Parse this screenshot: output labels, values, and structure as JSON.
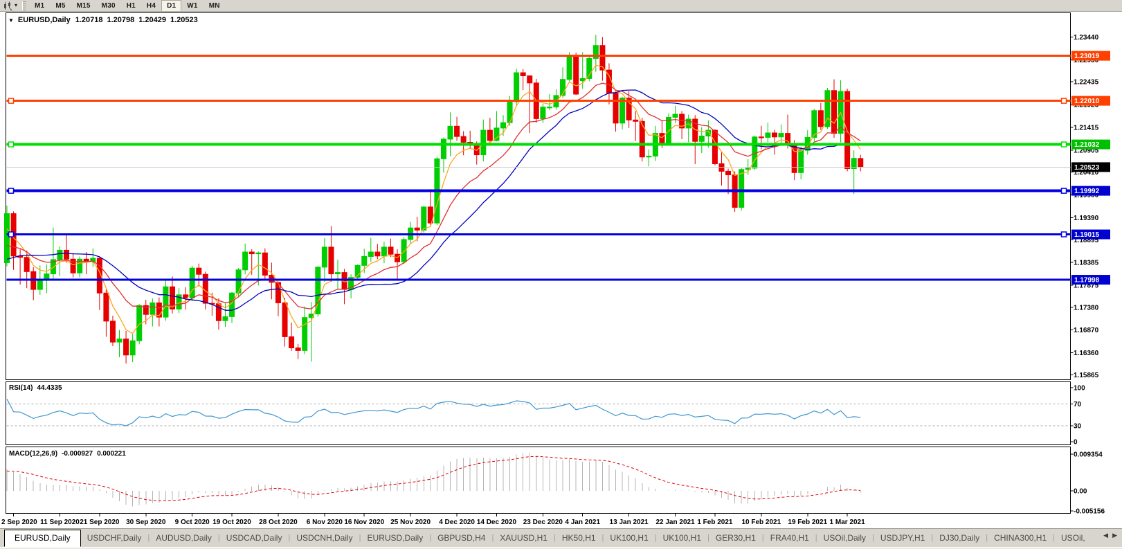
{
  "toolbar": {
    "chart_icon": "indicator-icon",
    "timeframes": [
      {
        "label": "M1",
        "active": false
      },
      {
        "label": "M5",
        "active": false
      },
      {
        "label": "M15",
        "active": false
      },
      {
        "label": "M30",
        "active": false
      },
      {
        "label": "H1",
        "active": false
      },
      {
        "label": "H4",
        "active": false
      },
      {
        "label": "D1",
        "active": true
      },
      {
        "label": "W1",
        "active": false
      },
      {
        "label": "MN",
        "active": false
      }
    ]
  },
  "chart_header": {
    "symbol": "EURUSD,Daily",
    "open": "1.20718",
    "high": "1.20798",
    "low": "1.20429",
    "close": "1.20523"
  },
  "price_axis": {
    "labels": [
      "1.23440",
      "1.22930",
      "1.22435",
      "1.21925",
      "1.21415",
      "1.20905",
      "1.20410",
      "1.19900",
      "1.19390",
      "1.18895",
      "1.18385",
      "1.17875",
      "1.17380",
      "1.16870",
      "1.16360",
      "1.15865"
    ],
    "current_price_badge": {
      "text": "1.20523",
      "bg": "#000000",
      "line_color": "#c8c8c8"
    }
  },
  "objects": {
    "hlines": [
      {
        "price": 1.23019,
        "label": "1.23019",
        "color": "#ff4000",
        "badge_bg": "#ff4000",
        "width": 3,
        "marker": false
      },
      {
        "price": 1.2201,
        "label": "1.22010",
        "color": "#ff4000",
        "badge_bg": "#ff4000",
        "width": 3,
        "marker": true
      },
      {
        "price": 1.21032,
        "label": "1.21032",
        "color": "#00de00",
        "badge_bg": "#00c000",
        "width": 4,
        "marker": true
      },
      {
        "price": 1.19992,
        "label": "1.19992",
        "color": "#0000e6",
        "badge_bg": "#0000d0",
        "width": 4,
        "marker": true
      },
      {
        "price": 1.19015,
        "label": "1.19015",
        "color": "#0000e6",
        "badge_bg": "#0000d0",
        "width": 3,
        "marker": true
      },
      {
        "price": 1.17998,
        "label": "1.17998",
        "color": "#0000e6",
        "badge_bg": "#0000d0",
        "width": 3,
        "marker": false
      }
    ]
  },
  "indicators": {
    "rsi": {
      "label": "RSI(14)",
      "value": "44.4335",
      "period": 14,
      "axis_labels": [
        "100",
        "70",
        "30",
        "0"
      ],
      "levels": [
        70,
        30
      ],
      "line_color": "#3e95d0",
      "level_color": "#a8a8a8"
    },
    "macd": {
      "label": "MACD(12,26,9)",
      "value_main": "-0.000927",
      "value_signal": "0.000221",
      "params": [
        12,
        26,
        9
      ],
      "axis_labels": [
        "0.009354",
        "0.00",
        "-0.005156"
      ],
      "axis_max": 0.009354,
      "axis_min": -0.005156,
      "histogram_color": "#b4b4b4",
      "signal_color": "#e00000"
    }
  },
  "chart_data": {
    "type": "candlestick",
    "title": "EURUSD,Daily",
    "symbol": "EURUSD",
    "timeframe": "Daily",
    "ylim": [
      1.15756,
      1.23983
    ],
    "grid": false,
    "up_color": "#00ce00",
    "down_color": "#e60000",
    "moving_averages": [
      {
        "period": 5,
        "method": "ema",
        "color": "#ffa520"
      },
      {
        "period": 13,
        "method": "ema",
        "color": "#e03030"
      },
      {
        "period": 20,
        "method": "sma",
        "color": "#0000c0"
      }
    ],
    "x_labels": [
      {
        "i": 1,
        "label": "2 Sep 2020"
      },
      {
        "i": 8,
        "label": "11 Sep 2020"
      },
      {
        "i": 14,
        "label": "21 Sep 2020"
      },
      {
        "i": 21,
        "label": "30 Sep 2020"
      },
      {
        "i": 28,
        "label": "9 Oct 2020"
      },
      {
        "i": 34,
        "label": "19 Oct 2020"
      },
      {
        "i": 41,
        "label": "28 Oct 2020"
      },
      {
        "i": 48,
        "label": "6 Nov 2020"
      },
      {
        "i": 54,
        "label": "16 Nov 2020"
      },
      {
        "i": 61,
        "label": "25 Nov 2020"
      },
      {
        "i": 68,
        "label": "4 Dec 2020"
      },
      {
        "i": 74,
        "label": "14 Dec 2020"
      },
      {
        "i": 81,
        "label": "23 Dec 2020"
      },
      {
        "i": 87,
        "label": "4 Jan 2021"
      },
      {
        "i": 94,
        "label": "13 Jan 2021"
      },
      {
        "i": 101,
        "label": "22 Jan 2021"
      },
      {
        "i": 107,
        "label": "1 Feb 2021"
      },
      {
        "i": 114,
        "label": "10 Feb 2021"
      },
      {
        "i": 121,
        "label": "19 Feb 2021"
      },
      {
        "i": 127,
        "label": "1 Mar 2021"
      }
    ],
    "candles": [
      [
        1.1838,
        1.1966,
        1.183,
        1.1948
      ],
      [
        1.1948,
        1.1953,
        1.1822,
        1.1853
      ],
      [
        1.1853,
        1.1868,
        1.1789,
        1.185
      ],
      [
        1.185,
        1.1865,
        1.1781,
        1.1818
      ],
      [
        1.1818,
        1.1828,
        1.1754,
        1.1778
      ],
      [
        1.1778,
        1.1832,
        1.1766,
        1.18
      ],
      [
        1.18,
        1.1834,
        1.177,
        1.1813
      ],
      [
        1.1813,
        1.1917,
        1.18,
        1.1845
      ],
      [
        1.1845,
        1.1874,
        1.1808,
        1.1866
      ],
      [
        1.1866,
        1.19,
        1.1838,
        1.1846
      ],
      [
        1.1846,
        1.186,
        1.1805,
        1.1815
      ],
      [
        1.1815,
        1.1852,
        1.1805,
        1.1846
      ],
      [
        1.1846,
        1.1862,
        1.1812,
        1.184
      ],
      [
        1.184,
        1.187,
        1.1828,
        1.1848
      ],
      [
        1.1848,
        1.1852,
        1.1732,
        1.177
      ],
      [
        1.177,
        1.1778,
        1.1672,
        1.1707
      ],
      [
        1.1707,
        1.1719,
        1.1651,
        1.166
      ],
      [
        1.166,
        1.1687,
        1.1626,
        1.1667
      ],
      [
        1.1667,
        1.1685,
        1.1612,
        1.1631
      ],
      [
        1.1631,
        1.1678,
        1.1615,
        1.1663
      ],
      [
        1.1663,
        1.1745,
        1.1655,
        1.1742
      ],
      [
        1.1742,
        1.1755,
        1.17,
        1.1722
      ],
      [
        1.1722,
        1.1758,
        1.1695,
        1.1748
      ],
      [
        1.1748,
        1.176,
        1.1695,
        1.1716
      ],
      [
        1.1716,
        1.1798,
        1.1708,
        1.1784
      ],
      [
        1.1784,
        1.1807,
        1.1724,
        1.1734
      ],
      [
        1.1734,
        1.1781,
        1.1725,
        1.1766
      ],
      [
        1.1766,
        1.1783,
        1.1733,
        1.1759
      ],
      [
        1.1759,
        1.1831,
        1.1752,
        1.1826
      ],
      [
        1.1826,
        1.1836,
        1.1785,
        1.1812
      ],
      [
        1.1812,
        1.1818,
        1.1733,
        1.1747
      ],
      [
        1.1747,
        1.1771,
        1.1719,
        1.1746
      ],
      [
        1.1746,
        1.1758,
        1.1688,
        1.1708
      ],
      [
        1.1708,
        1.1747,
        1.1694,
        1.1717
      ],
      [
        1.1717,
        1.1772,
        1.1703,
        1.177
      ],
      [
        1.177,
        1.1826,
        1.176,
        1.1822
      ],
      [
        1.1822,
        1.1881,
        1.1812,
        1.1862
      ],
      [
        1.1862,
        1.1868,
        1.1811,
        1.1858
      ],
      [
        1.1858,
        1.1863,
        1.1787,
        1.186
      ],
      [
        1.186,
        1.187,
        1.18,
        1.181
      ],
      [
        1.181,
        1.1838,
        1.1756,
        1.1794
      ],
      [
        1.1794,
        1.1796,
        1.1718,
        1.1748
      ],
      [
        1.1748,
        1.1759,
        1.165,
        1.1672
      ],
      [
        1.1672,
        1.1704,
        1.164,
        1.1647
      ],
      [
        1.1647,
        1.1656,
        1.1622,
        1.1641
      ],
      [
        1.1641,
        1.174,
        1.1633,
        1.1715
      ],
      [
        1.1715,
        1.175,
        1.1616,
        1.1723
      ],
      [
        1.1723,
        1.183,
        1.1717,
        1.1828
      ],
      [
        1.1828,
        1.1893,
        1.1795,
        1.1873
      ],
      [
        1.1873,
        1.192,
        1.1795,
        1.1813
      ],
      [
        1.1813,
        1.1845,
        1.1778,
        1.1816
      ],
      [
        1.1816,
        1.1824,
        1.1745,
        1.1778
      ],
      [
        1.1778,
        1.1812,
        1.1758,
        1.1805
      ],
      [
        1.1805,
        1.1834,
        1.1799,
        1.1832
      ],
      [
        1.1832,
        1.1869,
        1.1815,
        1.1852
      ],
      [
        1.1852,
        1.1894,
        1.184,
        1.1862
      ],
      [
        1.1862,
        1.188,
        1.1846,
        1.1853
      ],
      [
        1.1853,
        1.1885,
        1.1837,
        1.1873
      ],
      [
        1.1873,
        1.1892,
        1.1851,
        1.1857
      ],
      [
        1.1857,
        1.1868,
        1.18,
        1.184
      ],
      [
        1.184,
        1.1895,
        1.1835,
        1.189
      ],
      [
        1.189,
        1.193,
        1.1881,
        1.1916
      ],
      [
        1.1916,
        1.1941,
        1.1886,
        1.1911
      ],
      [
        1.1911,
        1.1965,
        1.1905,
        1.1963
      ],
      [
        1.1963,
        1.2003,
        1.1923,
        1.1927
      ],
      [
        1.1927,
        1.2076,
        1.1922,
        1.2071
      ],
      [
        1.2071,
        1.2119,
        1.204,
        1.2115
      ],
      [
        1.2115,
        1.2175,
        1.2077,
        1.2144
      ],
      [
        1.2144,
        1.2165,
        1.2111,
        1.2121
      ],
      [
        1.2121,
        1.2133,
        1.2079,
        1.2108
      ],
      [
        1.2108,
        1.2134,
        1.2095,
        1.2105
      ],
      [
        1.2105,
        1.211,
        1.2058,
        1.208
      ],
      [
        1.208,
        1.2159,
        1.2065,
        1.2135
      ],
      [
        1.2135,
        1.2163,
        1.2103,
        1.2112
      ],
      [
        1.2112,
        1.2178,
        1.211,
        1.214
      ],
      [
        1.214,
        1.2169,
        1.2122,
        1.2152
      ],
      [
        1.2152,
        1.2212,
        1.2145,
        1.2199
      ],
      [
        1.2199,
        1.2273,
        1.219,
        1.2264
      ],
      [
        1.2264,
        1.2272,
        1.2225,
        1.2257
      ],
      [
        1.2257,
        1.2258,
        1.2129,
        1.2241
      ],
      [
        1.2241,
        1.225,
        1.2152,
        1.2161
      ],
      [
        1.2161,
        1.2195,
        1.2151,
        1.2187
      ],
      [
        1.2187,
        1.2216,
        1.218,
        1.2187
      ],
      [
        1.2187,
        1.2227,
        1.2181,
        1.2213
      ],
      [
        1.2213,
        1.2276,
        1.2208,
        1.2249
      ],
      [
        1.2249,
        1.231,
        1.2245,
        1.2299
      ],
      [
        1.2299,
        1.2309,
        1.2214,
        1.2216
      ],
      [
        1.2246,
        1.231,
        1.2228,
        1.2251
      ],
      [
        1.2251,
        1.2302,
        1.2245,
        1.2296
      ],
      [
        1.2296,
        1.2349,
        1.2266,
        1.2325
      ],
      [
        1.2325,
        1.2344,
        1.2246,
        1.227
      ],
      [
        1.227,
        1.2285,
        1.2193,
        1.2218
      ],
      [
        1.2218,
        1.2225,
        1.2132,
        1.2151
      ],
      [
        1.2151,
        1.221,
        1.2137,
        1.2207
      ],
      [
        1.2207,
        1.2223,
        1.214,
        1.2158
      ],
      [
        1.2158,
        1.2178,
        1.2111,
        1.2155
      ],
      [
        1.2155,
        1.2163,
        1.2065,
        1.2075
      ],
      [
        1.2075,
        1.2092,
        1.2054,
        1.2077
      ],
      [
        1.2077,
        1.2145,
        1.2066,
        1.2128
      ],
      [
        1.2128,
        1.2158,
        1.2095,
        1.2104
      ],
      [
        1.2104,
        1.2173,
        1.21,
        1.2164
      ],
      [
        1.2164,
        1.219,
        1.2151,
        1.2171
      ],
      [
        1.2171,
        1.2178,
        1.2115,
        1.214
      ],
      [
        1.214,
        1.217,
        1.2108,
        1.216
      ],
      [
        1.216,
        1.2169,
        1.2059,
        1.211
      ],
      [
        1.211,
        1.2142,
        1.2084,
        1.2122
      ],
      [
        1.2122,
        1.2157,
        1.2096,
        1.2135
      ],
      [
        1.2135,
        1.2137,
        1.2056,
        1.206
      ],
      [
        1.206,
        1.2087,
        1.2011,
        1.2043
      ],
      [
        1.2043,
        1.2049,
        1.1992,
        1.2035
      ],
      [
        1.2035,
        1.2043,
        1.1952,
        1.1962
      ],
      [
        1.1962,
        1.205,
        1.1955,
        1.2047
      ],
      [
        1.2047,
        1.207,
        1.2035,
        1.205
      ],
      [
        1.205,
        1.2123,
        1.2046,
        1.212
      ],
      [
        1.212,
        1.2145,
        1.2092,
        1.2119
      ],
      [
        1.2119,
        1.2152,
        1.2108,
        1.2129
      ],
      [
        1.2129,
        1.2136,
        1.208,
        1.212
      ],
      [
        1.212,
        1.2148,
        1.2105,
        1.2128
      ],
      [
        1.2128,
        1.217,
        1.2094,
        1.2105
      ],
      [
        1.2105,
        1.2113,
        1.2023,
        1.204
      ],
      [
        1.204,
        1.2098,
        1.2025,
        1.209
      ],
      [
        1.209,
        1.2135,
        1.208,
        1.2119
      ],
      [
        1.2119,
        1.2183,
        1.211,
        1.2179
      ],
      [
        1.2179,
        1.2196,
        1.2135,
        1.2143
      ],
      [
        1.2143,
        1.223,
        1.2138,
        1.2224
      ],
      [
        1.2224,
        1.2249,
        1.2118,
        1.2128
      ],
      [
        1.2128,
        1.2247,
        1.2108,
        1.2222
      ],
      [
        1.2222,
        1.2228,
        1.2043,
        1.2049
      ],
      [
        1.2049,
        1.209,
        1.1992,
        1.2072
      ],
      [
        1.20718,
        1.20798,
        1.20429,
        1.20523
      ]
    ]
  },
  "tabs": {
    "items": [
      {
        "label": "EURUSD,Daily",
        "active": true
      },
      {
        "label": "USDCHF,Daily",
        "active": false
      },
      {
        "label": "AUDUSD,Daily",
        "active": false
      },
      {
        "label": "USDCAD,Daily",
        "active": false
      },
      {
        "label": "USDCNH,Daily",
        "active": false
      },
      {
        "label": "EURUSD,Daily",
        "active": false
      },
      {
        "label": "GBPUSD,H4",
        "active": false
      },
      {
        "label": "XAUUSD,H1",
        "active": false
      },
      {
        "label": "HK50,H1",
        "active": false
      },
      {
        "label": "UK100,H1",
        "active": false
      },
      {
        "label": "UK100,H1",
        "active": false
      },
      {
        "label": "GER30,H1",
        "active": false
      },
      {
        "label": "FRA40,H1",
        "active": false
      },
      {
        "label": "USOil,Daily",
        "active": false
      },
      {
        "label": "USDJPY,H1",
        "active": false
      },
      {
        "label": "DJ30,Daily",
        "active": false
      },
      {
        "label": "CHINA300,H1",
        "active": false
      },
      {
        "label": "USOil,",
        "active": false
      }
    ]
  }
}
